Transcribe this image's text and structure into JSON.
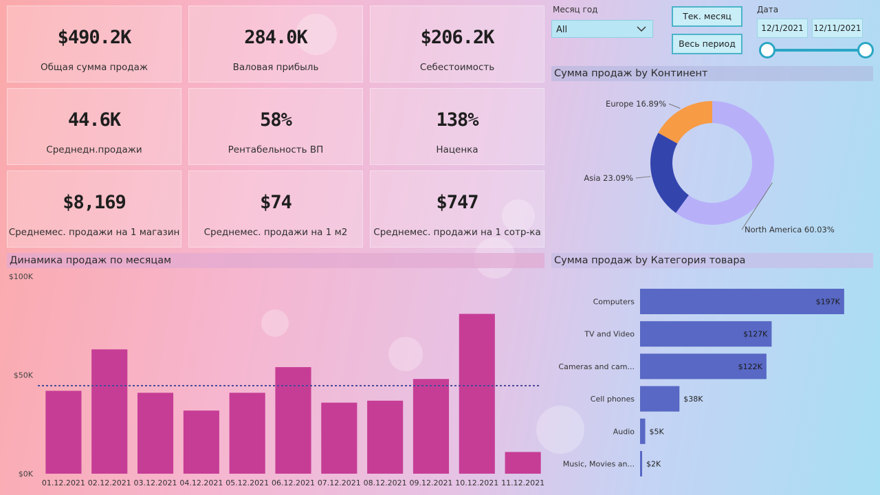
{
  "kpis": [
    {
      "value": "$490.2K",
      "label": "Общая сумма продаж"
    },
    {
      "value": "284.0K",
      "label": "Валовая прибыль"
    },
    {
      "value": "$206.2K",
      "label": "Себестоимость"
    },
    {
      "value": "44.6K",
      "label": "Среднедн.продажи"
    },
    {
      "value": "58%",
      "label": "Рентабельность ВП"
    },
    {
      "value": "138%",
      "label": "Наценка"
    },
    {
      "value": "$8,169",
      "label": "Среднемес. продажи на 1 магазин"
    },
    {
      "value": "$74",
      "label": "Среднемес. продажи на 1 м2"
    },
    {
      "value": "$747",
      "label": "Среднемес. продажи на 1 сотр-ка"
    }
  ],
  "filters": {
    "month_label": "Месяц год",
    "month_value": "All",
    "btn_current": "Тек. месяц",
    "btn_all": "Весь период",
    "date_label": "Дата",
    "date_from": "12/1/2021",
    "date_to": "12/11/2021"
  },
  "colors": {
    "bar": "#c63d96",
    "hbar": "#5868c4",
    "donut_na": "#b7b0f9",
    "donut_asia": "#3345ad",
    "donut_eu": "#f79b45"
  },
  "chart_data": [
    {
      "type": "pie",
      "title": "Сумма продаж by Континент",
      "categories": [
        "North America",
        "Asia",
        "Europe"
      ],
      "values": [
        60.03,
        23.09,
        16.89
      ],
      "labels": [
        "North America 60.03%",
        "Asia 23.09%",
        "Europe 16.89%"
      ]
    },
    {
      "type": "bar",
      "title": "Динамика продаж по месяцам",
      "categories": [
        "01.12.2021",
        "02.12.2021",
        "03.12.2021",
        "04.12.2021",
        "05.12.2021",
        "06.12.2021",
        "07.12.2021",
        "08.12.2021",
        "09.12.2021",
        "10.12.2021",
        "11.12.2021"
      ],
      "values": [
        42,
        63,
        41,
        32,
        41,
        54,
        36,
        37,
        48,
        81,
        11
      ],
      "average": 44.6,
      "ylim": [
        0,
        100
      ],
      "yticks": [
        0,
        50,
        100
      ],
      "ytick_labels": [
        "$0K",
        "$50K",
        "$100K"
      ]
    },
    {
      "type": "bar",
      "orientation": "horizontal",
      "title": "Сумма продаж by Категория товара",
      "categories": [
        "Computers",
        "TV and Video",
        "Cameras and cam...",
        "Cell phones",
        "Audio",
        "Music, Movies an..."
      ],
      "values": [
        197,
        127,
        122,
        38,
        5,
        2
      ],
      "data_labels": [
        "$197K",
        "$127K",
        "$122K",
        "$38K",
        "$5K",
        "$2K"
      ],
      "xlim": [
        0,
        215
      ]
    }
  ]
}
